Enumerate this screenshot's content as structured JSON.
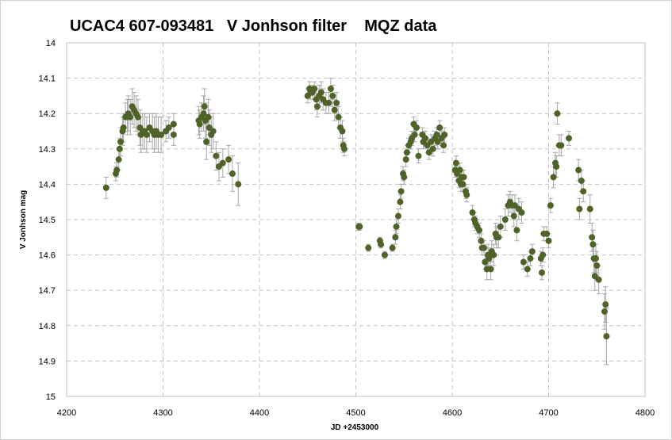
{
  "chart_data": {
    "type": "scatter",
    "title": "UCAC4 607-093481   V Jonhson filter    MQZ data",
    "xlabel": "JD +2453000",
    "ylabel": "V Jonhson mag",
    "xlim": [
      4200,
      4800
    ],
    "ylim": [
      14,
      15
    ],
    "y_inverted": true,
    "x_ticks": [
      "4200",
      "4300",
      "4400",
      "4500",
      "4600",
      "4700",
      "4800"
    ],
    "y_ticks": [
      "14",
      "14.1",
      "14.2",
      "14.3",
      "14.4",
      "14.5",
      "14.6",
      "14.7",
      "14.8",
      "14.9",
      "15"
    ],
    "grid": true,
    "error_bars": true,
    "marker_color": "#4f6228",
    "errorbar_color": "#a6a6a6",
    "grid_color": "#c0c0c0",
    "series": [
      {
        "values": [
          [
            4241,
            14.41,
            0.03
          ],
          [
            4251,
            14.37,
            0.02
          ],
          [
            4252,
            14.36,
            0.02
          ],
          [
            4254,
            14.33,
            0.03
          ],
          [
            4255,
            14.3,
            0.03
          ],
          [
            4256,
            14.28,
            0.04
          ],
          [
            4258,
            14.25,
            0.04
          ],
          [
            4259,
            14.24,
            0.04
          ],
          [
            4261,
            14.21,
            0.04
          ],
          [
            4263,
            14.21,
            0.05
          ],
          [
            4264,
            14.2,
            0.05
          ],
          [
            4266,
            14.21,
            0.05
          ],
          [
            4268,
            14.18,
            0.05
          ],
          [
            4270,
            14.19,
            0.05
          ],
          [
            4272,
            14.2,
            0.05
          ],
          [
            4274,
            14.21,
            0.05
          ],
          [
            4276,
            14.24,
            0.05
          ],
          [
            4277,
            14.26,
            0.05
          ],
          [
            4279,
            14.25,
            0.05
          ],
          [
            4281,
            14.25,
            0.05
          ],
          [
            4283,
            14.26,
            0.05
          ],
          [
            4286,
            14.24,
            0.04
          ],
          [
            4289,
            14.25,
            0.05
          ],
          [
            4291,
            14.26,
            0.05
          ],
          [
            4293,
            14.25,
            0.05
          ],
          [
            4295,
            14.26,
            0.05
          ],
          [
            4298,
            14.26,
            0.05
          ],
          [
            4303,
            14.25,
            0.03
          ],
          [
            4306,
            14.24,
            0.03
          ],
          [
            4311,
            14.23,
            0.03
          ],
          [
            4311,
            14.26,
            0.03
          ],
          [
            4337,
            14.22,
            0.04
          ],
          [
            4338,
            14.23,
            0.04
          ],
          [
            4340,
            14.21,
            0.04
          ],
          [
            4342,
            14.2,
            0.05
          ],
          [
            4343,
            14.18,
            0.05
          ],
          [
            4344,
            14.22,
            0.05
          ],
          [
            4345,
            14.28,
            0.05
          ],
          [
            4347,
            14.21,
            0.05
          ],
          [
            4348,
            14.24,
            0.05
          ],
          [
            4350,
            14.26,
            0.05
          ],
          [
            4352,
            14.25,
            0.05
          ],
          [
            4355,
            14.32,
            0.04
          ],
          [
            4358,
            14.35,
            0.04
          ],
          [
            4362,
            14.34,
            0.04
          ],
          [
            4368,
            14.33,
            0.04
          ],
          [
            4372,
            14.37,
            0.05
          ],
          [
            4378,
            14.4,
            0.06
          ],
          [
            4450,
            14.15,
            0.02
          ],
          [
            4452,
            14.13,
            0.02
          ],
          [
            4453,
            14.14,
            0.02
          ],
          [
            4455,
            14.14,
            0.02
          ],
          [
            4457,
            14.13,
            0.02
          ],
          [
            4459,
            14.16,
            0.03
          ],
          [
            4460,
            14.18,
            0.03
          ],
          [
            4462,
            14.15,
            0.03
          ],
          [
            4464,
            14.14,
            0.03
          ],
          [
            4466,
            14.16,
            0.03
          ],
          [
            4469,
            14.17,
            0.03
          ],
          [
            4472,
            14.17,
            0.03
          ],
          [
            4474,
            14.13,
            0.03
          ],
          [
            4476,
            14.15,
            0.03
          ],
          [
            4478,
            14.19,
            0.03
          ],
          [
            4480,
            14.17,
            0.03
          ],
          [
            4482,
            14.21,
            0.03
          ],
          [
            4484,
            14.24,
            0.03
          ],
          [
            4486,
            14.25,
            0.03
          ],
          [
            4487,
            14.29,
            0.02
          ],
          [
            4488,
            14.3,
            0.02
          ],
          [
            4503,
            14.52,
            0.01
          ],
          [
            4504,
            14.52,
            0.01
          ],
          [
            4513,
            14.58,
            0.01
          ],
          [
            4525,
            14.56,
            0.01
          ],
          [
            4526,
            14.57,
            0.01
          ],
          [
            4530,
            14.6,
            0.01
          ],
          [
            4538,
            14.58,
            0.01
          ],
          [
            4541,
            14.55,
            0.02
          ],
          [
            4542,
            14.52,
            0.02
          ],
          [
            4544,
            14.49,
            0.02
          ],
          [
            4546,
            14.45,
            0.02
          ],
          [
            4547,
            14.42,
            0.02
          ],
          [
            4549,
            14.37,
            0.02
          ],
          [
            4550,
            14.38,
            0.02
          ],
          [
            4552,
            14.33,
            0.02
          ],
          [
            4553,
            14.31,
            0.02
          ],
          [
            4555,
            14.29,
            0.02
          ],
          [
            4557,
            14.28,
            0.02
          ],
          [
            4558,
            14.27,
            0.02
          ],
          [
            4560,
            14.23,
            0.02
          ],
          [
            4561,
            14.26,
            0.02
          ],
          [
            4563,
            14.24,
            0.02
          ],
          [
            4565,
            14.32,
            0.02
          ],
          [
            4569,
            14.26,
            0.02
          ],
          [
            4570,
            14.28,
            0.02
          ],
          [
            4572,
            14.27,
            0.02
          ],
          [
            4574,
            14.29,
            0.02
          ],
          [
            4576,
            14.31,
            0.02
          ],
          [
            4578,
            14.28,
            0.02
          ],
          [
            4580,
            14.3,
            0.02
          ],
          [
            4582,
            14.27,
            0.02
          ],
          [
            4584,
            14.26,
            0.02
          ],
          [
            4585,
            14.28,
            0.02
          ],
          [
            4587,
            14.24,
            0.02
          ],
          [
            4589,
            14.27,
            0.02
          ],
          [
            4591,
            14.29,
            0.02
          ],
          [
            4592,
            14.26,
            0.02
          ],
          [
            4603,
            14.36,
            0.02
          ],
          [
            4604,
            14.34,
            0.02
          ],
          [
            4605,
            14.37,
            0.02
          ],
          [
            4607,
            14.39,
            0.02
          ],
          [
            4608,
            14.36,
            0.02
          ],
          [
            4609,
            14.4,
            0.02
          ],
          [
            4610,
            14.38,
            0.02
          ],
          [
            4611,
            14.4,
            0.02
          ],
          [
            4612,
            14.38,
            0.02
          ],
          [
            4614,
            14.42,
            0.02
          ],
          [
            4615,
            14.43,
            0.02
          ],
          [
            4621,
            14.48,
            0.02
          ],
          [
            4623,
            14.5,
            0.02
          ],
          [
            4624,
            14.51,
            0.02
          ],
          [
            4626,
            14.52,
            0.02
          ],
          [
            4628,
            14.53,
            0.02
          ],
          [
            4630,
            14.56,
            0.02
          ],
          [
            4631,
            14.58,
            0.02
          ],
          [
            4633,
            14.58,
            0.02
          ],
          [
            4634,
            14.62,
            0.02
          ],
          [
            4636,
            14.64,
            0.03
          ],
          [
            4637,
            14.6,
            0.03
          ],
          [
            4638,
            14.61,
            0.03
          ],
          [
            4640,
            14.64,
            0.03
          ],
          [
            4641,
            14.59,
            0.03
          ],
          [
            4643,
            14.6,
            0.03
          ],
          [
            4645,
            14.54,
            0.03
          ],
          [
            4646,
            14.55,
            0.03
          ],
          [
            4648,
            14.55,
            0.03
          ],
          [
            4650,
            14.52,
            0.03
          ],
          [
            4655,
            14.5,
            0.03
          ],
          [
            4658,
            14.46,
            0.03
          ],
          [
            4660,
            14.45,
            0.03
          ],
          [
            4662,
            14.46,
            0.03
          ],
          [
            4664,
            14.49,
            0.03
          ],
          [
            4665,
            14.46,
            0.03
          ],
          [
            4667,
            14.53,
            0.03
          ],
          [
            4669,
            14.47,
            0.03
          ],
          [
            4672,
            14.48,
            0.03
          ],
          [
            4674,
            14.62,
            0.02
          ],
          [
            4678,
            14.64,
            0.02
          ],
          [
            4681,
            14.61,
            0.02
          ],
          [
            4683,
            14.59,
            0.02
          ],
          [
            4692,
            14.61,
            0.02
          ],
          [
            4693,
            14.65,
            0.02
          ],
          [
            4694,
            14.6,
            0.02
          ],
          [
            4695,
            14.54,
            0.02
          ],
          [
            4698,
            14.54,
            0.02
          ],
          [
            4700,
            14.56,
            0.02
          ],
          [
            4702,
            14.46,
            0.02
          ],
          [
            4705,
            14.38,
            0.03
          ],
          [
            4707,
            14.34,
            0.03
          ],
          [
            4708,
            14.35,
            0.03
          ],
          [
            4709,
            14.2,
            0.03
          ],
          [
            4711,
            14.29,
            0.03
          ],
          [
            4713,
            14.29,
            0.03
          ],
          [
            4721,
            14.27,
            0.02
          ],
          [
            4731,
            14.36,
            0.03
          ],
          [
            4732,
            14.47,
            0.03
          ],
          [
            4734,
            14.39,
            0.03
          ],
          [
            4736,
            14.42,
            0.03
          ],
          [
            4743,
            14.47,
            0.04
          ],
          [
            4745,
            14.55,
            0.04
          ],
          [
            4746,
            14.57,
            0.04
          ],
          [
            4747,
            14.61,
            0.04
          ],
          [
            4748,
            14.66,
            0.04
          ],
          [
            4749,
            14.61,
            0.04
          ],
          [
            4750,
            14.63,
            0.04
          ],
          [
            4752,
            14.67,
            0.04
          ],
          [
            4758,
            14.76,
            0.05
          ],
          [
            4759,
            14.74,
            0.05
          ],
          [
            4760,
            14.83,
            0.08
          ]
        ]
      }
    ]
  }
}
